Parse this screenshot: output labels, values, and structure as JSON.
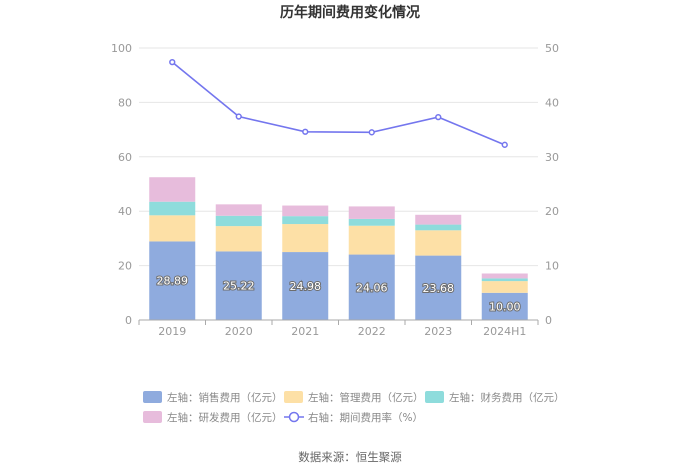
{
  "chart_data": {
    "type": "bar",
    "title": "历年期间费用变化情况",
    "categories": [
      "2019",
      "2020",
      "2021",
      "2022",
      "2023",
      "2024H1"
    ],
    "series": [
      {
        "name": "左轴：销售费用（亿元）",
        "axis": "left",
        "kind": "stacked-bar",
        "color": "#8fabde",
        "values": [
          28.89,
          25.22,
          24.98,
          24.06,
          23.68,
          10.0
        ]
      },
      {
        "name": "左轴：管理费用（亿元）",
        "axis": "left",
        "kind": "stacked-bar",
        "color": "#fde0a6",
        "values": [
          9.6,
          9.3,
          10.3,
          10.6,
          9.3,
          4.3
        ]
      },
      {
        "name": "左轴：财务费用（亿元）",
        "axis": "left",
        "kind": "stacked-bar",
        "color": "#8edcdc",
        "values": [
          5.0,
          3.8,
          2.9,
          2.5,
          2.1,
          1.0
        ]
      },
      {
        "name": "左轴：研发费用（亿元）",
        "axis": "left",
        "kind": "stacked-bar",
        "color": "#e7bcdc",
        "values": [
          9.0,
          4.2,
          3.9,
          4.6,
          3.6,
          1.8
        ]
      },
      {
        "name": "右轴：期间费用率（%）",
        "axis": "right",
        "kind": "line",
        "color": "#7476ee",
        "values": [
          47.4,
          37.4,
          34.6,
          34.5,
          37.3,
          32.2
        ]
      }
    ],
    "data_labels": [
      "28.89",
      "25.22",
      "24.98",
      "24.06",
      "23.68",
      "10.00"
    ],
    "ylim_left": [
      0,
      100
    ],
    "yticks_left": [
      "0",
      "20",
      "40",
      "60",
      "80",
      "100"
    ],
    "ylim_right": [
      0,
      50
    ],
    "yticks_right": [
      "0",
      "10",
      "20",
      "30",
      "40",
      "50"
    ],
    "grid": "horizontal",
    "legend_position": "bottom",
    "source": "数据来源：恒生聚源"
  }
}
